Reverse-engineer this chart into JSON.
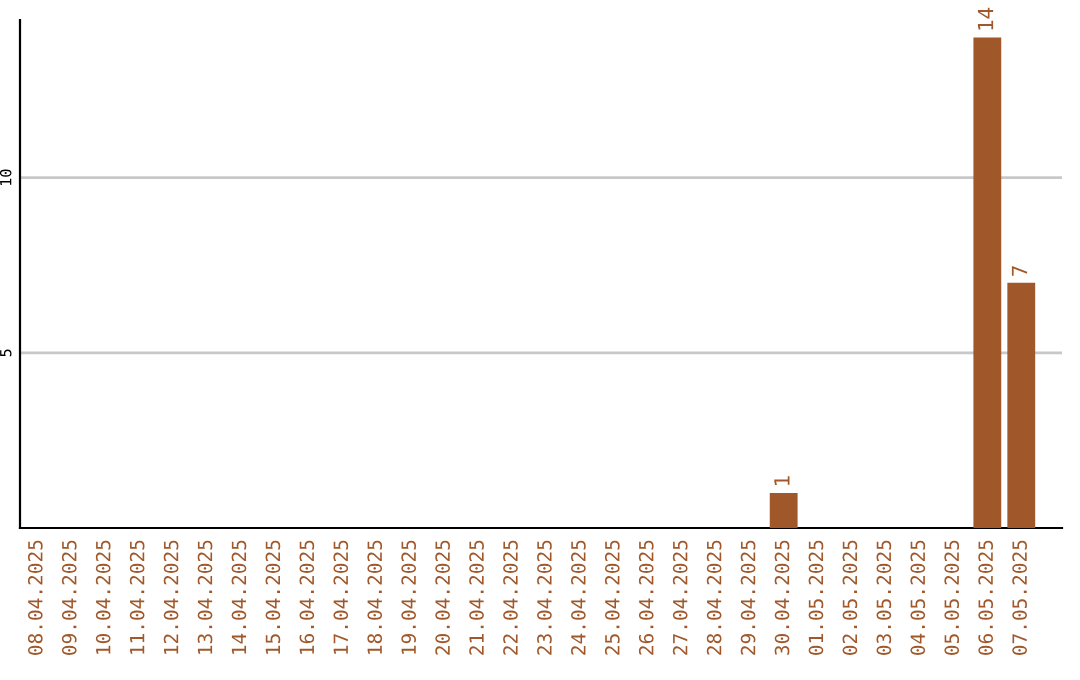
{
  "chart_data": {
    "type": "bar",
    "categories": [
      "08.04.2025",
      "09.04.2025",
      "10.04.2025",
      "11.04.2025",
      "12.04.2025",
      "13.04.2025",
      "14.04.2025",
      "15.04.2025",
      "16.04.2025",
      "17.04.2025",
      "18.04.2025",
      "19.04.2025",
      "20.04.2025",
      "21.04.2025",
      "22.04.2025",
      "23.04.2025",
      "24.04.2025",
      "25.04.2025",
      "26.04.2025",
      "27.04.2025",
      "28.04.2025",
      "29.04.2025",
      "30.04.2025",
      "01.05.2025",
      "02.05.2025",
      "03.05.2025",
      "04.05.2025",
      "05.05.2025",
      "06.05.2025",
      "07.05.2025"
    ],
    "values": [
      0,
      0,
      0,
      0,
      0,
      0,
      0,
      0,
      0,
      0,
      0,
      0,
      0,
      0,
      0,
      0,
      0,
      0,
      0,
      0,
      0,
      0,
      1,
      0,
      0,
      0,
      0,
      0,
      14,
      7
    ],
    "value_labels": [
      null,
      null,
      null,
      null,
      null,
      null,
      null,
      null,
      null,
      null,
      null,
      null,
      null,
      null,
      null,
      null,
      null,
      null,
      null,
      null,
      null,
      null,
      "1",
      null,
      null,
      null,
      null,
      null,
      "14",
      "7"
    ],
    "color": "#a0582a",
    "ylim": [
      0,
      14.5
    ],
    "yticks": [
      5,
      10
    ],
    "grid": "y"
  }
}
